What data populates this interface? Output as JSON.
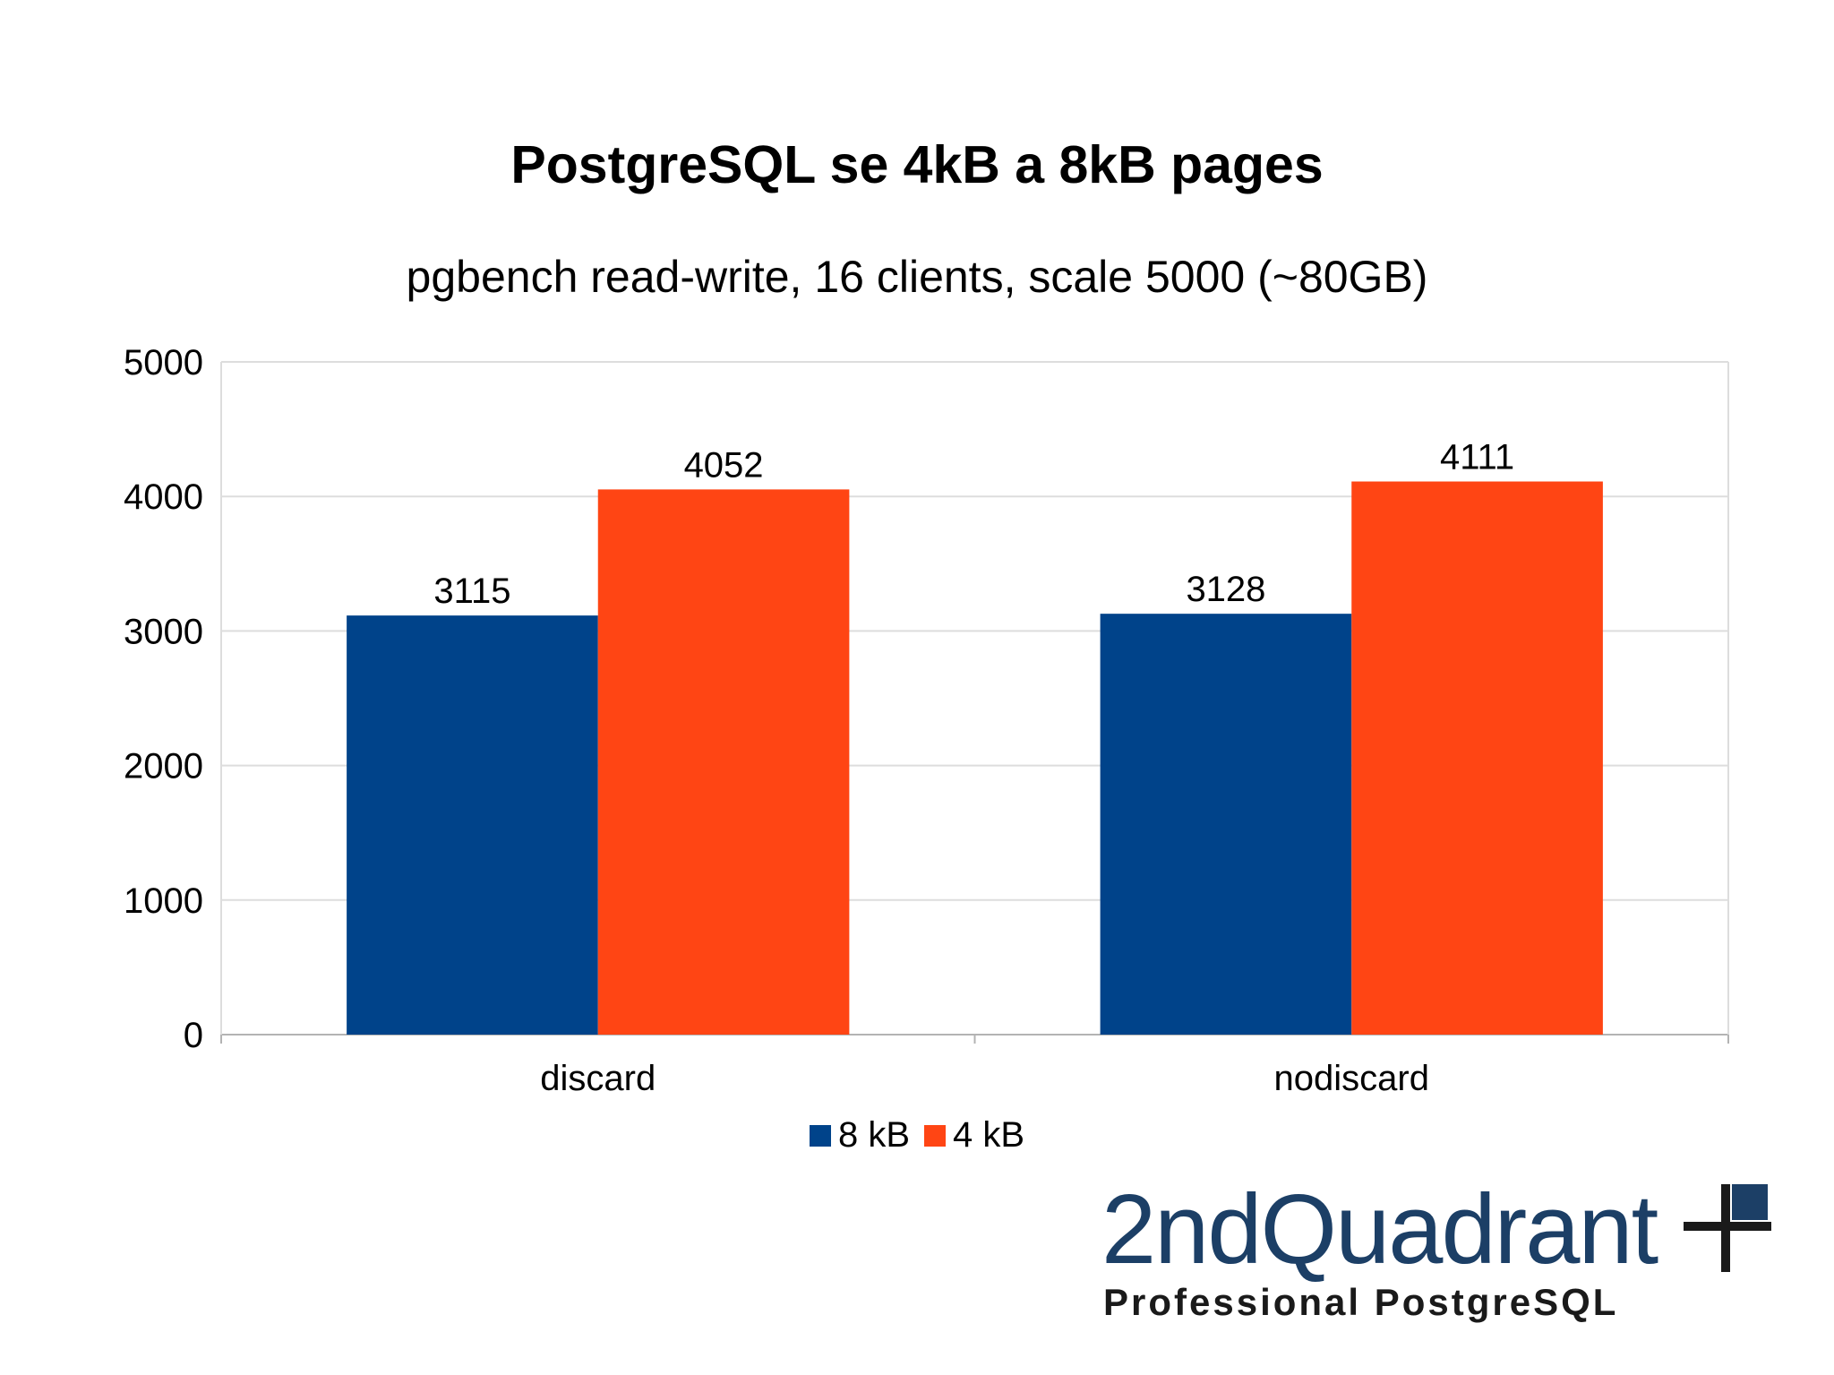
{
  "chart_data": {
    "type": "bar",
    "title": "PostgreSQL se 4kB a 8kB pages",
    "subtitle": "pgbench read-write, 16 clients, scale 5000 (~80GB)",
    "categories": [
      "discard",
      "nodiscard"
    ],
    "series": [
      {
        "name": "8 kB",
        "values": [
          3115,
          3128
        ],
        "color": "#00438a"
      },
      {
        "name": "4 kB",
        "values": [
          4052,
          4111
        ],
        "color": "#ff4514"
      }
    ],
    "ylim": [
      0,
      5000
    ],
    "yticks": [
      0,
      1000,
      2000,
      3000,
      4000,
      5000
    ],
    "xlabel": "",
    "ylabel": "",
    "grid": true,
    "legend": "bottom"
  },
  "logo": {
    "name": "2ndQuadrant",
    "tagline": "Professional PostgreSQL",
    "name_color": "#1c3f66",
    "accent_color": "#1c3f66",
    "cross_color": "#1a1a1a"
  }
}
